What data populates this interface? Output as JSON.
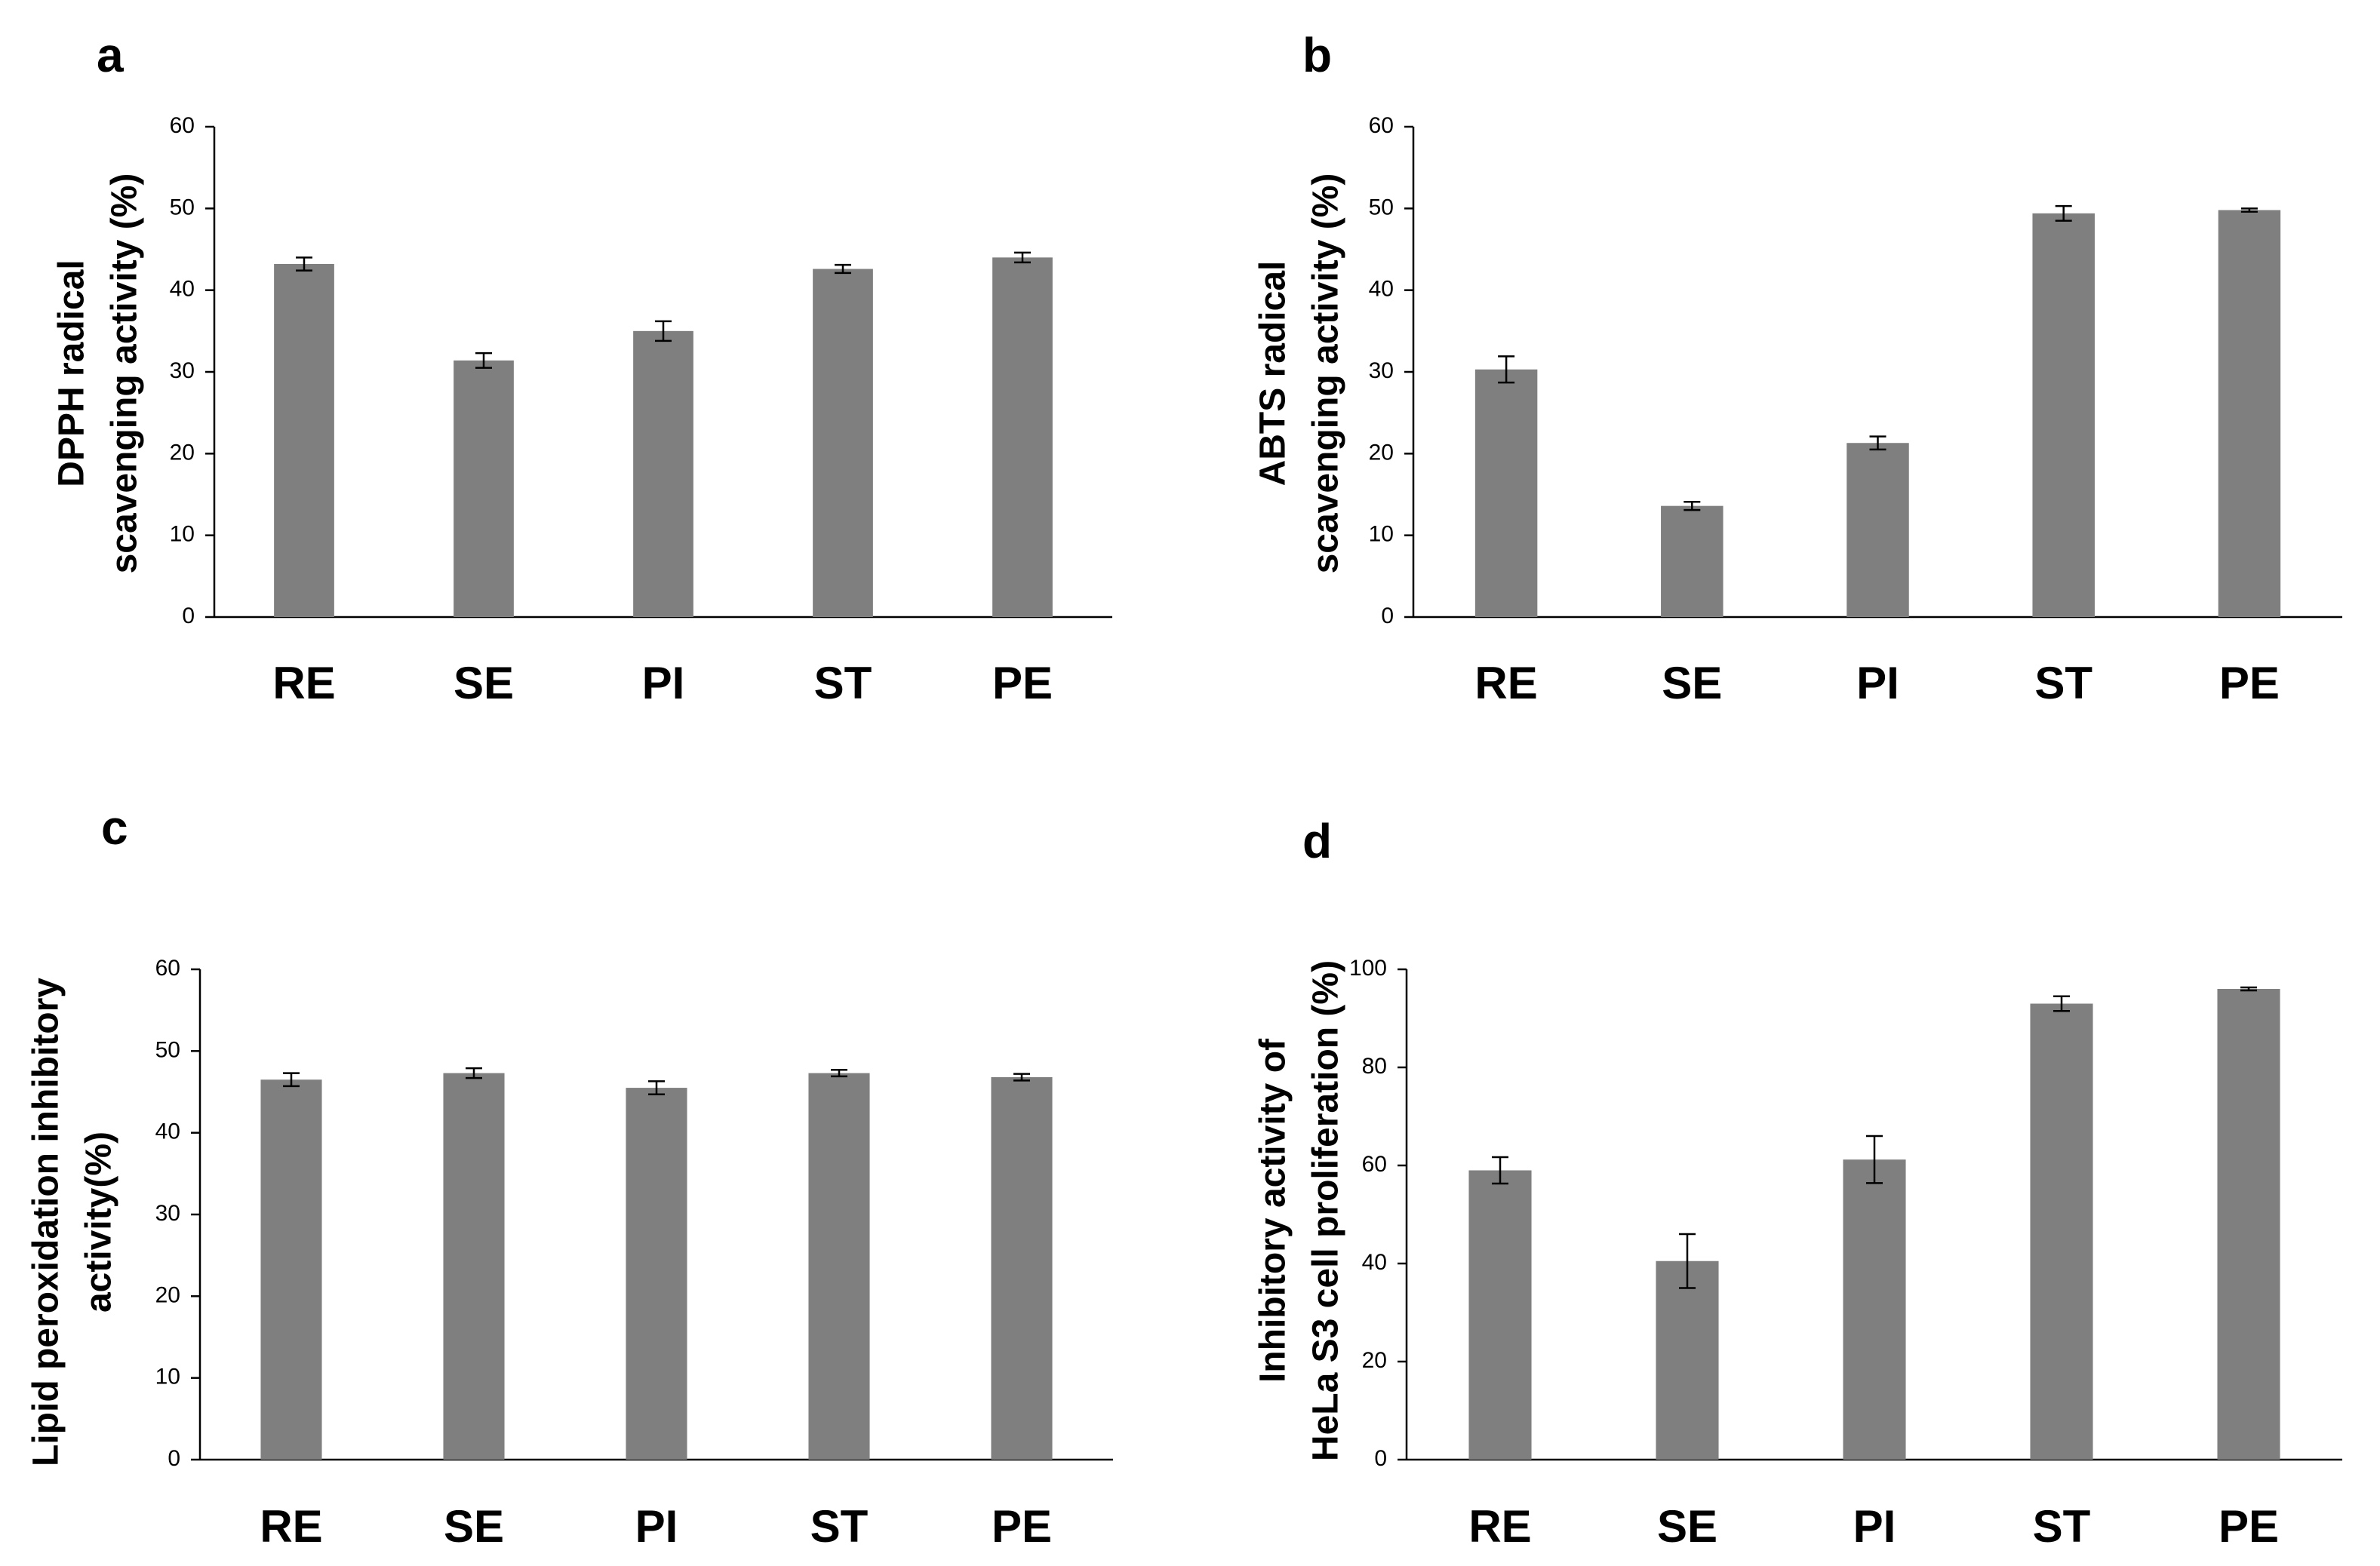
{
  "bar_color": "#7f7f7f",
  "axis_color": "#000000",
  "chart_data": [
    {
      "panel": "a",
      "type": "bar",
      "title": "",
      "ylabel_lines": [
        "DPPH radical",
        "scavenging activity (%)"
      ],
      "categories": [
        "RE",
        "SE",
        "PI",
        "ST",
        "PE"
      ],
      "values": [
        43.2,
        31.4,
        35.0,
        42.6,
        44.0
      ],
      "errors": [
        0.8,
        0.9,
        1.2,
        0.5,
        0.6
      ],
      "ylim": [
        0,
        60
      ],
      "yticks": [
        0,
        10,
        20,
        30,
        40,
        50,
        60
      ],
      "ytick_labels": [
        "0",
        "10",
        "20",
        "30",
        "40",
        "50",
        "60"
      ]
    },
    {
      "panel": "b",
      "type": "bar",
      "title": "",
      "ylabel_lines": [
        "ABTS radical",
        "scavenging activity (%)"
      ],
      "categories": [
        "RE",
        "SE",
        "PI",
        "ST",
        "PE"
      ],
      "values": [
        30.3,
        13.6,
        21.3,
        49.4,
        49.8
      ],
      "errors": [
        1.6,
        0.5,
        0.8,
        0.9,
        0.2
      ],
      "ylim": [
        0,
        60
      ],
      "yticks": [
        0,
        10,
        20,
        30,
        40,
        50,
        60
      ],
      "ytick_labels": [
        "0",
        "10",
        "20",
        "30",
        "40",
        "50",
        "60"
      ]
    },
    {
      "panel": "c",
      "type": "bar",
      "title": "",
      "ylabel_lines": [
        "Lipid peroxidation inhibitory",
        "activity(%)"
      ],
      "categories": [
        "RE",
        "SE",
        "PI",
        "ST",
        "PE"
      ],
      "values": [
        46.5,
        47.3,
        45.5,
        47.3,
        46.8
      ],
      "errors": [
        0.8,
        0.6,
        0.8,
        0.4,
        0.4
      ],
      "ylim": [
        0,
        60
      ],
      "yticks": [
        0,
        10,
        20,
        30,
        40,
        50,
        60
      ],
      "ytick_labels": [
        "0",
        "10",
        "20",
        "30",
        "40",
        "50",
        "60"
      ]
    },
    {
      "panel": "d",
      "type": "bar",
      "title": "",
      "ylabel_lines": [
        "Inhibitory activity of",
        "HeLa S3 cell proliferation (%)"
      ],
      "categories": [
        "RE",
        "SE",
        "PI",
        "ST",
        "PE"
      ],
      "values": [
        59.0,
        40.5,
        61.2,
        93.0,
        96.0
      ],
      "errors": [
        2.7,
        5.5,
        4.8,
        1.5,
        0.3
      ],
      "ylim": [
        0,
        100
      ],
      "yticks": [
        0,
        20,
        40,
        60,
        80,
        100
      ],
      "ytick_labels": [
        "0",
        "20",
        "40",
        "60",
        "80",
        "100"
      ]
    }
  ]
}
